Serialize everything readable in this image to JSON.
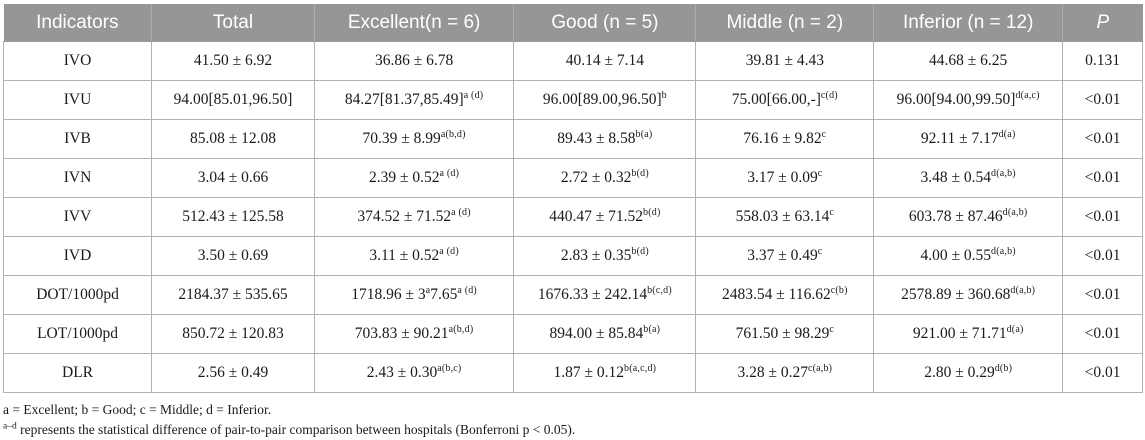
{
  "colors": {
    "header_bg": "#969696",
    "header_text": "#ffffff",
    "grid_line": "#b3b3b3",
    "body_text": "#1a1a1a"
  },
  "table": {
    "columns": [
      {
        "label": "Indicators"
      },
      {
        "label": "Total"
      },
      {
        "label": "Excellent(n = 6)"
      },
      {
        "label": "Good (n = 5)"
      },
      {
        "label": "Middle (n = 2)"
      },
      {
        "label": "Inferior (n = 12)"
      },
      {
        "label": "P"
      }
    ],
    "rows": [
      {
        "indicator": "IVO",
        "cells": [
          "41.50 ± 6.92",
          "36.86 ± 6.78",
          "40.14 ± 7.14",
          "39.81 ± 4.43",
          "44.68 ± 6.25",
          "0.131"
        ]
      },
      {
        "indicator": "IVU",
        "cells": [
          "94.00[85.01,96.50]",
          "84.27[81.37,85.49]^{a (d)}",
          "96.00[89.00,96.50]^{b}",
          "75.00[66.00,-]^{c(d)}",
          "96.00[94.00,99.50]^{d(a,c)}",
          "<0.01"
        ]
      },
      {
        "indicator": "IVB",
        "cells": [
          "85.08 ± 12.08",
          "70.39 ± 8.99^{a(b,d)}",
          "89.43 ± 8.58^{b(a)}",
          "76.16 ± 9.82^{c}",
          "92.11 ± 7.17^{d(a)}",
          "<0.01"
        ]
      },
      {
        "indicator": "IVN",
        "cells": [
          "3.04 ± 0.66",
          "2.39 ± 0.52^{a (d)}",
          "2.72 ± 0.32^{b(d)}",
          "3.17 ± 0.09^{c}",
          "3.48 ± 0.54^{d(a,b)}",
          "<0.01"
        ]
      },
      {
        "indicator": "IVV",
        "cells": [
          "512.43 ± 125.58",
          "374.52 ± 71.52^{a (d)}",
          "440.47 ± 71.52^{b(d)}",
          "558.03 ± 63.14^{c}",
          "603.78 ± 87.46^{d(a,b)}",
          "<0.01"
        ]
      },
      {
        "indicator": "IVD",
        "cells": [
          "3.50 ± 0.69",
          "3.11 ± 0.52^{a (d)}",
          "2.83 ± 0.35^{b(d)}",
          "3.37 ± 0.49^{c}",
          "4.00 ± 0.55^{d(a,b)}",
          "<0.01"
        ]
      },
      {
        "indicator": "DOT/1000pd",
        "cells": [
          "2184.37 ± 535.65",
          "1718.96 ± 3^{a}7.65^{a (d)}",
          "1676.33 ± 242.14^{b(c,d)}",
          "2483.54 ± 116.62^{c(b)}",
          "2578.89 ± 360.68^{d(a,b)}",
          "<0.01"
        ]
      },
      {
        "indicator": "LOT/1000pd",
        "cells": [
          "850.72 ± 120.83",
          "703.83 ± 90.21^{a(b,d)}",
          "894.00 ± 85.84^{b(a)}",
          "761.50 ± 98.29^{c}",
          "921.00 ± 71.71^{d(a)}",
          "<0.01"
        ]
      },
      {
        "indicator": "DLR",
        "cells": [
          "2.56 ± 0.49",
          "2.43 ± 0.30^{a(b,c)}",
          "1.87 ± 0.12^{b(a,c,d)}",
          "3.28 ± 0.27^{c(a,b)}",
          "2.80 ± 0.29^{d(b)}",
          "<0.01"
        ]
      }
    ]
  },
  "footnotes": {
    "line1": "a = Excellent; b = Good; c = Middle; d = Inferior.",
    "line2": "^{a–d} represents the statistical difference of pair-to-pair comparison between hospitals (Bonferroni p < 0.05)."
  }
}
